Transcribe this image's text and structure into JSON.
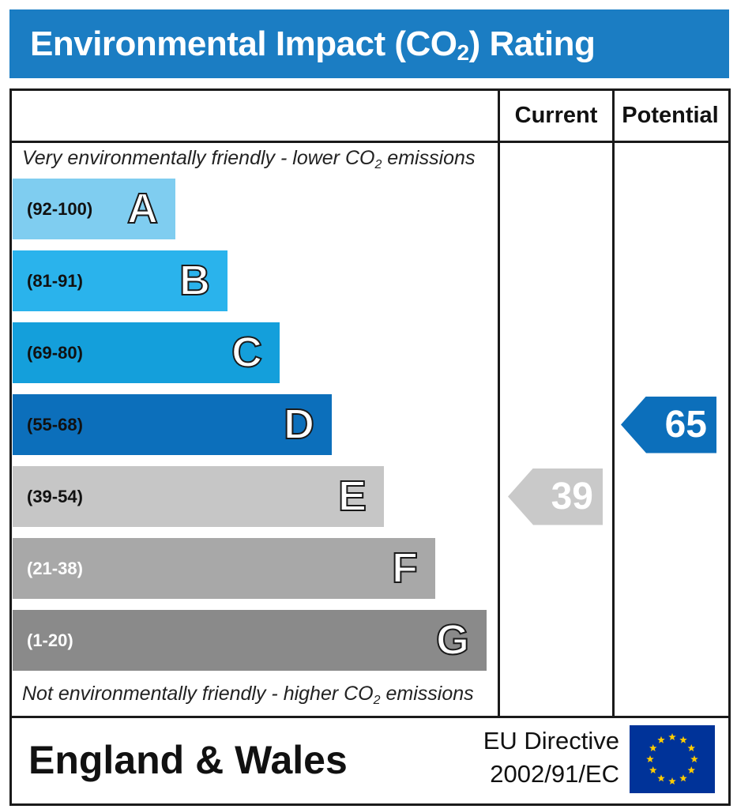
{
  "title": {
    "main": "Environmental Impact (CO",
    "subscript": "2",
    "suffix": ") Rating"
  },
  "columns": {
    "current": "Current",
    "potential": "Potential"
  },
  "top_note": {
    "before": "Very environmentally friendly - lower CO",
    "subscript": "2",
    "after": " emissions"
  },
  "bottom_note": {
    "before": "Not environmentally friendly - higher CO",
    "subscript": "2",
    "after": " emissions"
  },
  "footer": {
    "country": "England & Wales",
    "directive_line1": "EU Directive",
    "directive_line2": "2002/91/EC"
  },
  "colors": {
    "title_bar": "#1b7dc3",
    "A": "#7fcdf0",
    "B": "#2ab3ec",
    "C": "#149fdb",
    "D": "#0c6fbb",
    "E": "#c6c6c6",
    "F": "#a8a8a8",
    "G": "#8a8a8a",
    "current_arrow": "#c9c9c9",
    "potential_arrow": "#0c6fbb",
    "eu_flag": "#003399",
    "eu_star": "#ffcc00"
  },
  "chart_data": {
    "type": "bar",
    "categories": [
      "A",
      "B",
      "C",
      "D",
      "E",
      "F",
      "G"
    ],
    "bands": [
      {
        "letter": "A",
        "range": "(92-100)",
        "min": 92,
        "max": 100
      },
      {
        "letter": "B",
        "range": "(81-91)",
        "min": 81,
        "max": 91
      },
      {
        "letter": "C",
        "range": "(69-80)",
        "min": 69,
        "max": 80
      },
      {
        "letter": "D",
        "range": "(55-68)",
        "min": 55,
        "max": 68
      },
      {
        "letter": "E",
        "range": "(39-54)",
        "min": 39,
        "max": 54
      },
      {
        "letter": "F",
        "range": "(21-38)",
        "min": 21,
        "max": 38
      },
      {
        "letter": "G",
        "range": "(1-20)",
        "min": 1,
        "max": 20
      }
    ],
    "series": [
      {
        "name": "Current",
        "value": 39,
        "band": "E"
      },
      {
        "name": "Potential",
        "value": 65,
        "band": "D"
      }
    ]
  }
}
